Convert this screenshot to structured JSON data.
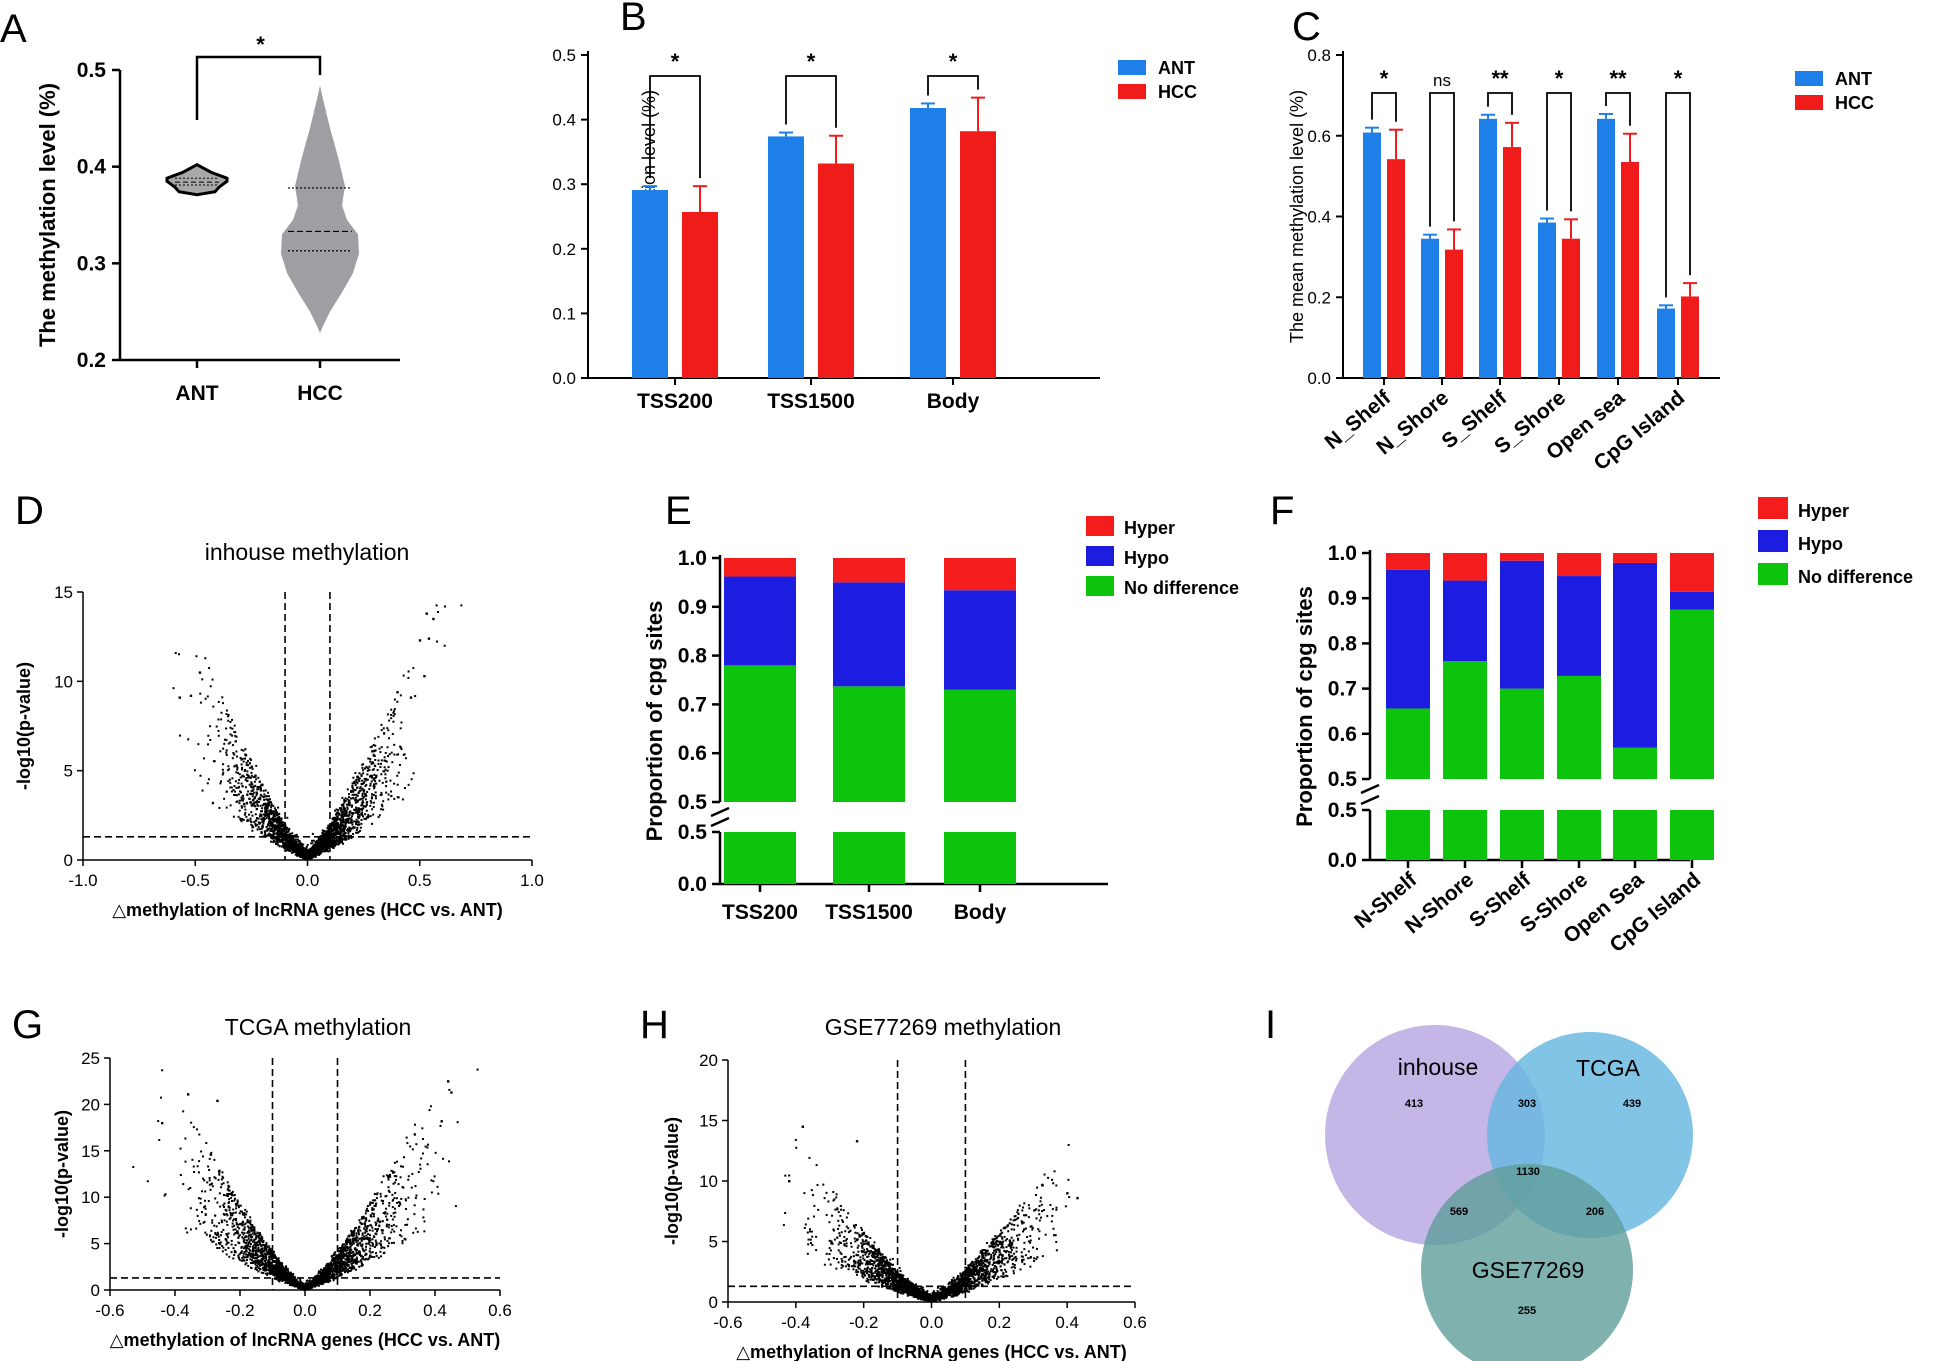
{
  "colors": {
    "ANT": "#1f7fe8",
    "HCC": "#f01b1b",
    "Hyper": "#f41c1c",
    "Hypo": "#1d1de2",
    "NoDiff": "#0cc40c",
    "ant_violin": "#a8a8ab",
    "hcc_violin": "#9e9ea3",
    "venn_inhouse": "#b8a6e3",
    "venn_tcga": "#66b7df",
    "venn_gse": "#5f9e9a"
  },
  "chart_data": [
    {
      "panel": "A",
      "type": "violin",
      "ylabel": "The methylation level (%)",
      "ylim": [
        0.2,
        0.5
      ],
      "yticks": [
        "0.2",
        "0.3",
        "0.4",
        "0.5"
      ],
      "categories": [
        "ANT",
        "HCC"
      ],
      "groups": [
        {
          "name": "ANT",
          "min": 0.371,
          "max": 0.402,
          "quartiles": [
            0.381,
            0.384,
            0.388
          ]
        },
        {
          "name": "HCC",
          "min": 0.228,
          "max": 0.484,
          "quartiles": [
            0.313,
            0.333,
            0.378
          ]
        }
      ],
      "significance": "*"
    },
    {
      "panel": "B",
      "type": "bar",
      "ylabel": "The mean methylation level (%)",
      "ylim": [
        0,
        0.5
      ],
      "yticks": [
        "0.0",
        "0.1",
        "0.2",
        "0.3",
        "0.4",
        "0.5"
      ],
      "categories": [
        "TSS200",
        "TSS1500",
        "Body"
      ],
      "series": [
        {
          "name": "ANT",
          "values": [
            0.291,
            0.374,
            0.418
          ],
          "errors": [
            0.006,
            0.006,
            0.007
          ]
        },
        {
          "name": "HCC",
          "values": [
            0.257,
            0.332,
            0.382
          ],
          "errors": [
            0.04,
            0.043,
            0.052
          ]
        }
      ],
      "significance": [
        "*",
        "*",
        "*"
      ],
      "legend": "top-right"
    },
    {
      "panel": "C",
      "type": "bar",
      "ylabel": "The mean methylation level (%)",
      "ylim": [
        0,
        0.8
      ],
      "yticks": [
        "0.0",
        "0.2",
        "0.4",
        "0.6",
        "0.8"
      ],
      "categories": [
        "N_Shelf",
        "N_Shore",
        "S_Shelf",
        "S_Shore",
        "Open sea",
        "CpG Island"
      ],
      "series": [
        {
          "name": "ANT",
          "values": [
            0.608,
            0.345,
            0.642,
            0.385,
            0.642,
            0.172
          ],
          "errors": [
            0.012,
            0.01,
            0.01,
            0.01,
            0.012,
            0.008
          ]
        },
        {
          "name": "HCC",
          "values": [
            0.542,
            0.318,
            0.572,
            0.345,
            0.535,
            0.202
          ],
          "errors": [
            0.073,
            0.05,
            0.06,
            0.048,
            0.07,
            0.033
          ]
        }
      ],
      "significance": [
        "*",
        "ns",
        "**",
        "*",
        "**",
        "*"
      ],
      "legend": "top-right"
    },
    {
      "panel": "D",
      "type": "scatter",
      "title": "inhouse methylation",
      "xlabel": "△methylation of lncRNA genes (HCC vs. ANT)",
      "ylabel": "-log10(p-value)",
      "xlim": [
        -1.0,
        1.0
      ],
      "ylim": [
        0,
        15
      ],
      "xticks": [
        "-1.0",
        "-0.5",
        "0.0",
        "0.5",
        "1.0"
      ],
      "yticks": [
        "0",
        "5",
        "10",
        "15"
      ],
      "vlines": [
        -0.1,
        0.1
      ],
      "hline": 1.3,
      "spread_x": 0.58,
      "spread_y": 11.5,
      "n_points": 2600,
      "outliers": [
        [
          0.53,
          13.8
        ],
        [
          0.56,
          13.5
        ],
        [
          0.5,
          12.3
        ],
        [
          0.54,
          12.4
        ],
        [
          0.52,
          10.3
        ],
        [
          0.46,
          9.1
        ],
        [
          0.4,
          9.4
        ],
        [
          -0.48,
          10.5
        ],
        [
          -0.52,
          9.2
        ],
        [
          -0.57,
          9.1
        ]
      ]
    },
    {
      "panel": "E",
      "type": "stacked_bar",
      "ylabel": "Proportion of cpg sites",
      "categories": [
        "TSS200",
        "TSS1500",
        "Body"
      ],
      "ylim": [
        0,
        1.0
      ],
      "axis_break": [
        0.5,
        0.5
      ],
      "yticks_upper": [
        "0.5",
        "0.6",
        "0.7",
        "0.8",
        "0.9",
        "1.0"
      ],
      "yticks_lower": [
        "0.0",
        "0.5"
      ],
      "series": [
        {
          "name": "Hyper",
          "values": [
            0.038,
            0.05,
            0.066
          ]
        },
        {
          "name": "Hypo",
          "values": [
            0.182,
            0.213,
            0.204
          ]
        },
        {
          "name": "No difference",
          "values": [
            0.78,
            0.737,
            0.73
          ]
        }
      ],
      "legend": "top-right"
    },
    {
      "panel": "F",
      "type": "stacked_bar",
      "ylabel": "Proportion of cpg sites",
      "categories": [
        "N-Shelf",
        "N-Shore",
        "S-Shelf",
        "S-Shore",
        "Open Sea",
        "CpG Island"
      ],
      "ylim": [
        0,
        1.0
      ],
      "axis_break": [
        0.5,
        0.5
      ],
      "yticks_upper": [
        "0.5",
        "0.6",
        "0.7",
        "0.8",
        "0.9",
        "1.0"
      ],
      "yticks_lower": [
        "0.0",
        "0.5"
      ],
      "series": [
        {
          "name": "Hyper",
          "values": [
            0.037,
            0.061,
            0.017,
            0.051,
            0.022,
            0.086
          ]
        },
        {
          "name": "Hypo",
          "values": [
            0.307,
            0.178,
            0.283,
            0.221,
            0.409,
            0.039
          ]
        },
        {
          "name": "No difference",
          "values": [
            0.656,
            0.761,
            0.7,
            0.728,
            0.569,
            0.875
          ]
        }
      ],
      "legend": "top-right"
    },
    {
      "panel": "G",
      "type": "scatter",
      "title": "TCGA methylation",
      "xlabel": "△methylation of lncRNA genes (HCC vs. ANT)",
      "ylabel": "-log10(p-value)",
      "xlim": [
        -0.6,
        0.6
      ],
      "ylim": [
        0,
        25
      ],
      "xticks": [
        "-0.6",
        "-0.4",
        "-0.2",
        "0.0",
        "0.2",
        "0.4",
        "0.6"
      ],
      "yticks": [
        "0",
        "5",
        "10",
        "15",
        "20",
        "25"
      ],
      "vlines": [
        -0.1,
        0.1
      ],
      "hline": 1.3,
      "spread_x": 0.46,
      "spread_y": 20,
      "n_points": 2600,
      "outliers": [
        [
          0.44,
          22.5
        ],
        [
          0.45,
          21.3
        ],
        [
          -0.36,
          21.1
        ],
        [
          -0.27,
          20.4
        ],
        [
          0.42,
          18.2
        ],
        [
          -0.44,
          18
        ]
      ]
    },
    {
      "panel": "H",
      "type": "scatter",
      "title": "GSE77269 methylation",
      "xlabel": "△methylation of lncRNA genes (HCC vs. ANT)",
      "ylabel": "-log10(p-value)",
      "xlim": [
        -0.6,
        0.6
      ],
      "ylim": [
        0,
        20
      ],
      "xticks": [
        "-0.6",
        "-0.4",
        "-0.2",
        "0.0",
        "0.2",
        "0.4",
        "0.6"
      ],
      "yticks": [
        "0",
        "5",
        "10",
        "15",
        "20"
      ],
      "vlines": [
        -0.1,
        0.1
      ],
      "hline": 1.3,
      "spread_x": 0.44,
      "spread_y": 11.5,
      "n_points": 2600,
      "outliers": [
        [
          -0.38,
          14.5
        ],
        [
          -0.22,
          13.3
        ],
        [
          -0.42,
          10
        ],
        [
          0.4,
          9
        ],
        [
          0.43,
          8.6
        ]
      ]
    },
    {
      "panel": "I",
      "type": "venn",
      "sets": [
        "inhouse",
        "TCGA",
        "GSE77269"
      ],
      "regions": {
        "inhouse_only": "413",
        "tcga_only": "439",
        "gse_only": "255",
        "inhouse_tcga": "303",
        "inhouse_gse": "569",
        "tcga_gse": "206",
        "all": "1130"
      }
    }
  ],
  "panel_letters": [
    "A",
    "B",
    "C",
    "D",
    "E",
    "F",
    "G",
    "H",
    "I"
  ]
}
